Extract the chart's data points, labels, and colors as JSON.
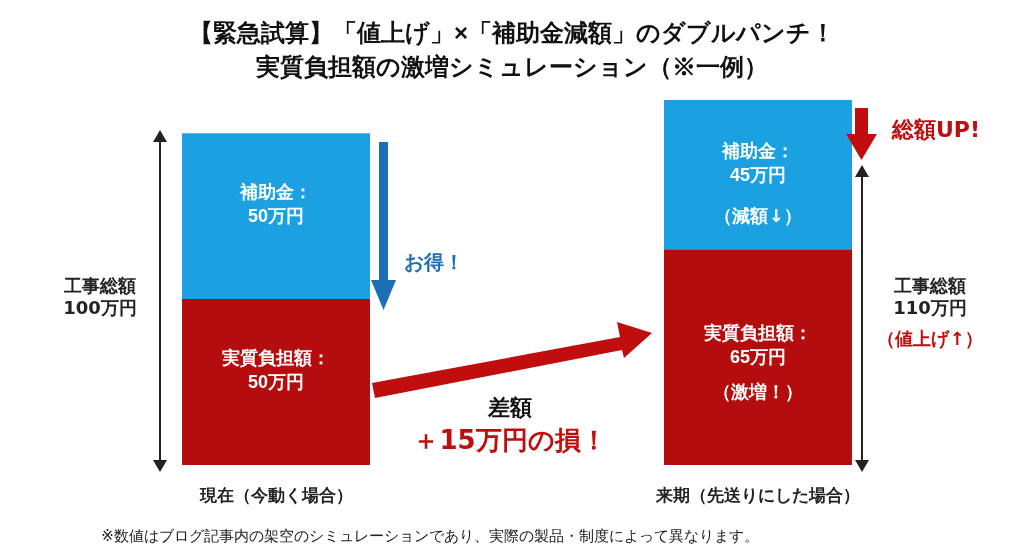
{
  "chart_data": {
    "type": "bar",
    "title": "【緊急試算】「値上げ」×「補助金減額」のダブルパンチ！",
    "subtitle": "実質負担額の激増シミュレーション（※一例）",
    "categories": [
      "現在（今動く場合）",
      "来期（先送りにした場合）"
    ],
    "stacked": true,
    "ylim": [
      0,
      110
    ],
    "tick_labels": "x",
    "series": [
      {
        "color": "#b50d0d",
        "values": [
          50,
          65
        ],
        "value_labels": [
          "実質負担額：\n50万円",
          "実質負担額：\n65万円"
        ]
      },
      {
        "color": "#1ba1e2",
        "values": [
          50,
          45
        ],
        "value_labels": [
          "補助金：\n50万円",
          "補助金：\n45万円"
        ]
      }
    ],
    "annotations": [
      "工事総額\n100万円",
      "お得！",
      "差額",
      "＋15万円の損！",
      "総額UP!",
      "工事総額\n110万円",
      "（値上げ↑）",
      "※数値はブログ記事内の架空のシミュレーションであり、実際の製品・制度によって異なります。",
      "（激増！）",
      "（減額↓）"
    ]
  }
}
